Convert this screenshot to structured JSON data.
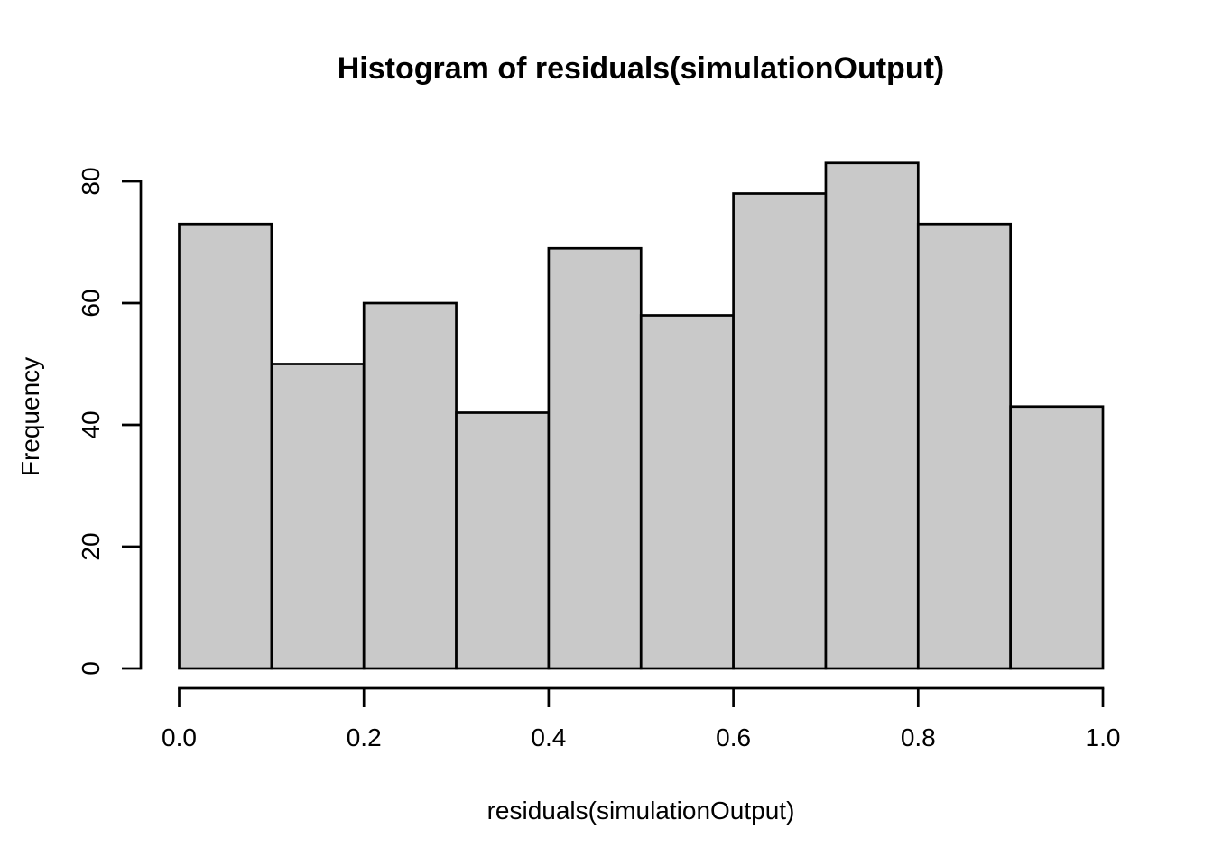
{
  "chart_data": {
    "type": "bar",
    "subtype": "histogram",
    "title": "Histogram of residuals(simulationOutput)",
    "xlabel": "residuals(simulationOutput)",
    "ylabel": "Frequency",
    "bin_edges": [
      0.0,
      0.1,
      0.2,
      0.3,
      0.4,
      0.5,
      0.6,
      0.7,
      0.8,
      0.9,
      1.0
    ],
    "counts": [
      73,
      50,
      60,
      42,
      69,
      58,
      78,
      83,
      73,
      43
    ],
    "xlim": [
      0.0,
      1.0
    ],
    "ylim": [
      0,
      80
    ],
    "x_ticks": {
      "values": [
        0.0,
        0.2,
        0.4,
        0.6,
        0.8,
        1.0
      ],
      "labels": [
        "0.0",
        "0.2",
        "0.4",
        "0.6",
        "0.8",
        "1.0"
      ]
    },
    "y_ticks": {
      "values": [
        0,
        20,
        40,
        60,
        80
      ],
      "labels": [
        "0",
        "20",
        "40",
        "60",
        "80"
      ]
    },
    "grid": false,
    "legend": "none",
    "colors": {
      "bar_fill": "#C9C9C9",
      "bar_border": "#000000",
      "axis": "#000000",
      "text": "#000000",
      "background": "#FFFFFF"
    }
  }
}
